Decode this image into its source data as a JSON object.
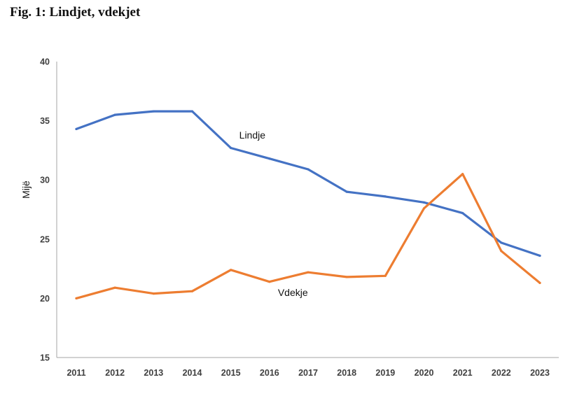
{
  "figure": {
    "title": "Fig. 1: Lindjet, vdekjet"
  },
  "chart_data": {
    "type": "line",
    "title": "Fig. 1: Lindjet, vdekjet",
    "xlabel": "",
    "ylabel": "Mijë",
    "x": [
      "2011",
      "2012",
      "2013",
      "2014",
      "2015",
      "2016",
      "2017",
      "2018",
      "2019",
      "2020",
      "2021",
      "2022",
      "2023"
    ],
    "ylim": [
      15,
      40
    ],
    "yticks": [
      15,
      20,
      25,
      30,
      35,
      40
    ],
    "grid": false,
    "legend": "none",
    "series": [
      {
        "name": "Lindje",
        "color": "#4472C4",
        "values": [
          34.3,
          35.5,
          35.8,
          35.8,
          32.7,
          31.8,
          30.9,
          29.0,
          28.6,
          28.1,
          27.2,
          24.7,
          23.6
        ],
        "label_at": {
          "x": "2015",
          "y": 33.5
        }
      },
      {
        "name": "Vdekje",
        "color": "#ED7D31",
        "values": [
          20.0,
          20.9,
          20.4,
          20.6,
          22.4,
          21.4,
          22.2,
          21.8,
          21.9,
          27.6,
          30.5,
          24.0,
          21.3
        ],
        "label_at": {
          "x": "2016",
          "y": 20.2
        }
      }
    ]
  }
}
